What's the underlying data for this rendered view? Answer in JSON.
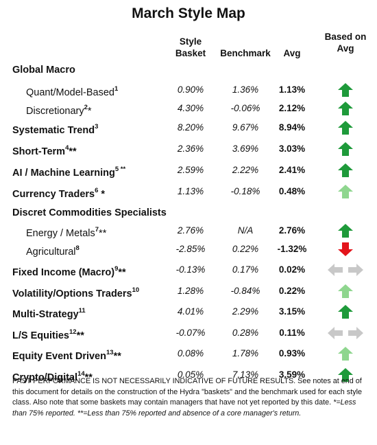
{
  "title": "March Style Map",
  "columns": {
    "basket": [
      "Style",
      "Basket"
    ],
    "benchmark": "Benchmark",
    "avg": "Avg",
    "signal": [
      "Based on",
      "Avg"
    ]
  },
  "colors": {
    "up_dark": "#1e9a3a",
    "up_light": "#8fd68f",
    "down": "#e3141b",
    "neutral": "#c8c8c8"
  },
  "rows": [
    {
      "label": "Global Macro",
      "sup": "",
      "level": "group",
      "basket": "",
      "benchmark": "",
      "avg": "",
      "signal": "none"
    },
    {
      "label": "Quant/Model-Based",
      "sup": "1",
      "level": "sub",
      "basket": "0.90%",
      "benchmark": "1.36%",
      "avg": "1.13%",
      "signal": "up-dark"
    },
    {
      "label": "Discretionary",
      "sup": "2",
      "suffix": "*",
      "level": "sub",
      "basket": "4.30%",
      "benchmark": "-0.06%",
      "avg": "2.12%",
      "signal": "up-dark"
    },
    {
      "label": "Systematic Trend",
      "sup": "3",
      "level": "main",
      "basket": "8.20%",
      "benchmark": "9.67%",
      "avg": "8.94%",
      "signal": "up-dark"
    },
    {
      "label": "Short-Term",
      "sup": "4",
      "suffix": "**",
      "level": "main",
      "basket": "2.36%",
      "benchmark": "3.69%",
      "avg": "3.03%",
      "signal": "up-dark"
    },
    {
      "label": "AI / Machine Learning",
      "sup": "5 **",
      "level": "main",
      "basket": "2.59%",
      "benchmark": "2.22%",
      "avg": "2.41%",
      "signal": "up-dark"
    },
    {
      "label": "Currency Traders",
      "sup": "6",
      "suffix": " *",
      "level": "main",
      "basket": "1.13%",
      "benchmark": "-0.18%",
      "avg": "0.48%",
      "signal": "up-light"
    },
    {
      "label": "Discret Commodities Specialists",
      "sup": "",
      "level": "group",
      "basket": "",
      "benchmark": "",
      "avg": "",
      "signal": "none"
    },
    {
      "label": "Energy / Metals",
      "sup": "7",
      "suffix": "**",
      "level": "sub",
      "basket": "2.76%",
      "benchmark": "N/A",
      "avg": "2.76%",
      "signal": "up-dark"
    },
    {
      "label": "Agricultural",
      "sup": "8",
      "level": "sub",
      "basket": "-2.85%",
      "benchmark": "0.22%",
      "avg": "-1.32%",
      "signal": "down"
    },
    {
      "label": "Fixed Income (Macro)",
      "sup": "9",
      "suffix": "**",
      "level": "main",
      "basket": "-0.13%",
      "benchmark": "0.17%",
      "avg": "0.02%",
      "signal": "neutral"
    },
    {
      "label": "Volatility/Options Traders",
      "sup": "10",
      "level": "main",
      "basket": "1.28%",
      "benchmark": "-0.84%",
      "avg": "0.22%",
      "signal": "up-light"
    },
    {
      "label": "Multi-Strategy",
      "sup": "11",
      "level": "main",
      "basket": "4.01%",
      "benchmark": "2.29%",
      "avg": "3.15%",
      "signal": "up-dark"
    },
    {
      "label": "L/S Equities",
      "sup": "12",
      "suffix": "**",
      "level": "main",
      "basket": "-0.07%",
      "benchmark": "0.28%",
      "avg": "0.11%",
      "signal": "neutral"
    },
    {
      "label": "Equity Event Driven",
      "sup": "13",
      "suffix": "**",
      "level": "main",
      "basket": "0.08%",
      "benchmark": "1.78%",
      "avg": "0.93%",
      "signal": "up-light"
    },
    {
      "label": "Crypto/Digital",
      "sup": "14",
      "suffix": "**",
      "level": "main",
      "basket": "0.05%",
      "benchmark": "7.13%",
      "avg": "3.59%",
      "signal": "up-dark"
    }
  ],
  "footnote": {
    "main": "PAST PERFORMANCE IS NOT NECESSARILY INDICATIVE OF FUTURE RESULTS. See notes at end of this document for details on the construction of the Hydra \"baskets\" and the benchmark used for each style class.  Also note that some baskets may contain managers that have not yet reported by this date.",
    "italic": "*=Less than 75% reported. **=Less than 75% reported and absence of a core manager's return."
  }
}
